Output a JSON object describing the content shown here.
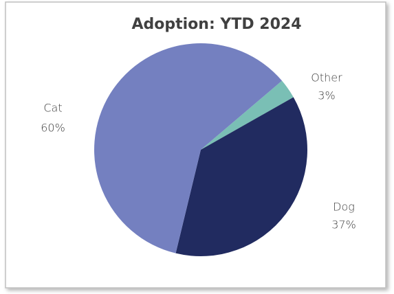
{
  "chart_data": {
    "type": "pie",
    "title": "Adoption: YTD 2024",
    "categories": [
      "Other",
      "Dog",
      "Cat"
    ],
    "values": [
      3,
      37,
      60
    ],
    "value_labels": [
      "3%",
      "37%",
      "60%"
    ],
    "colors": [
      "#7abfb5",
      "#212b60",
      "#7480c0"
    ]
  }
}
